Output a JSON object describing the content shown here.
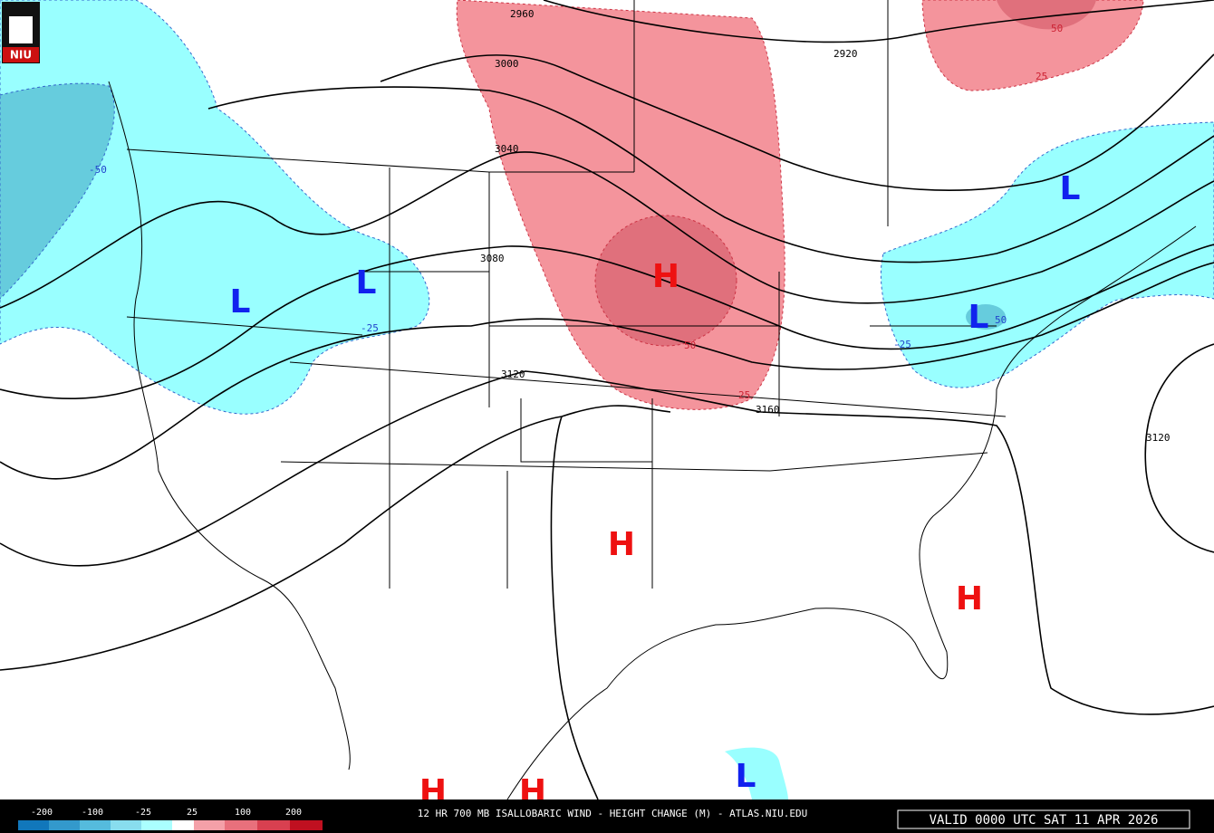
{
  "logo": "NIU",
  "contour_labels": [
    "2960",
    "3000",
    "3040",
    "3080",
    "3120",
    "3160",
    "3120",
    "2920"
  ],
  "change_labels": [
    "-50",
    "-25",
    "50",
    "25",
    "50",
    "25",
    "50",
    "-25"
  ],
  "highs": [
    "H",
    "H",
    "H",
    "H",
    "H"
  ],
  "lows": [
    "L",
    "L",
    "L",
    "L",
    "L"
  ],
  "legend_labels": [
    "-200",
    "-100",
    "-25",
    "25",
    "100",
    "200"
  ],
  "caption": "12 HR 700 MB ISALLOBARIC WIND - HEIGHT CHANGE (M) - ATLAS.NIU.EDU",
  "valid_time": "VALID 0000 UTC SAT 11 APR 2026"
}
